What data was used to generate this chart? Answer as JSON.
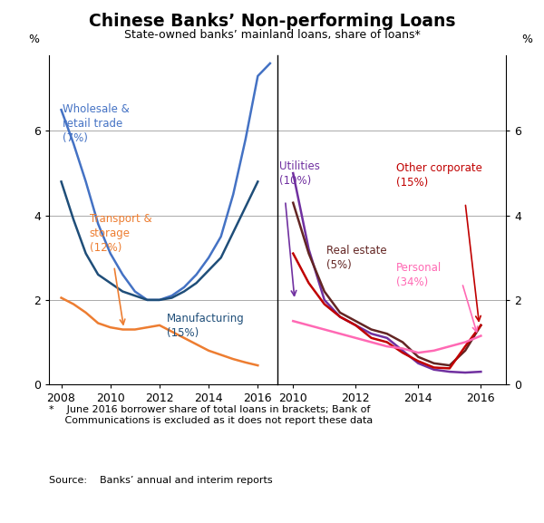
{
  "title": "Chinese Banks’ Non-performing Loans",
  "subtitle": "State-owned banks’ mainland loans, share of loans*",
  "footnote": "*    June 2016 borrower share of total loans in brackets; Bank of\n     Communications is excluded as it does not report these data",
  "source": "Source:    Banks’ annual and interim reports",
  "ylim": [
    0,
    7.8
  ],
  "yticks": [
    0,
    2,
    4,
    6
  ],
  "left_panel": {
    "xlim": [
      2007.5,
      2016.8
    ],
    "xticks": [
      2008,
      2010,
      2012,
      2014,
      2016
    ],
    "series": {
      "wholesale": {
        "color": "#4472C4",
        "x": [
          2008,
          2008.5,
          2009,
          2009.5,
          2010,
          2010.5,
          2011,
          2011.5,
          2012,
          2012.5,
          2013,
          2013.5,
          2014,
          2014.5,
          2015,
          2015.5,
          2016,
          2016.5
        ],
        "y": [
          6.5,
          5.7,
          4.8,
          3.8,
          3.1,
          2.6,
          2.2,
          2.0,
          2.0,
          2.1,
          2.3,
          2.6,
          3.0,
          3.5,
          4.5,
          5.8,
          7.3,
          7.6
        ]
      },
      "manufacturing": {
        "color": "#1F4E79",
        "x": [
          2008,
          2008.5,
          2009,
          2009.5,
          2010,
          2010.5,
          2011,
          2011.5,
          2012,
          2012.5,
          2013,
          2013.5,
          2014,
          2014.5,
          2015,
          2015.5,
          2016
        ],
        "y": [
          4.8,
          3.9,
          3.1,
          2.6,
          2.4,
          2.2,
          2.1,
          2.0,
          2.0,
          2.05,
          2.2,
          2.4,
          2.7,
          3.0,
          3.6,
          4.2,
          4.8
        ]
      },
      "transport": {
        "color": "#ED7D31",
        "x": [
          2008,
          2008.5,
          2009,
          2009.5,
          2010,
          2010.5,
          2011,
          2011.5,
          2012,
          2012.5,
          2013,
          2013.5,
          2014,
          2014.5,
          2015,
          2015.5,
          2016
        ],
        "y": [
          2.05,
          1.9,
          1.7,
          1.45,
          1.35,
          1.3,
          1.3,
          1.35,
          1.4,
          1.25,
          1.1,
          0.95,
          0.8,
          0.7,
          0.6,
          0.52,
          0.45
        ]
      }
    }
  },
  "right_panel": {
    "xlim": [
      2009.5,
      2016.8
    ],
    "xticks": [
      2010,
      2012,
      2014,
      2016
    ],
    "series": {
      "utilities": {
        "color": "#7030A0",
        "x": [
          2010,
          2010.5,
          2011,
          2011.5,
          2012,
          2012.5,
          2013,
          2013.5,
          2014,
          2014.5,
          2015,
          2015.5,
          2016
        ],
        "y": [
          5.0,
          3.2,
          2.0,
          1.6,
          1.4,
          1.2,
          1.1,
          0.8,
          0.5,
          0.35,
          0.3,
          0.28,
          0.3
        ]
      },
      "real_estate": {
        "color": "#632523",
        "x": [
          2010,
          2010.5,
          2011,
          2011.5,
          2012,
          2012.5,
          2013,
          2013.5,
          2014,
          2014.5,
          2015,
          2015.5,
          2016
        ],
        "y": [
          4.3,
          3.1,
          2.2,
          1.7,
          1.5,
          1.3,
          1.2,
          1.0,
          0.65,
          0.5,
          0.45,
          0.8,
          1.4
        ]
      },
      "other_corporate": {
        "color": "#C00000",
        "x": [
          2010,
          2010.5,
          2011,
          2011.5,
          2012,
          2012.5,
          2013,
          2013.5,
          2014,
          2014.5,
          2015,
          2015.5,
          2016
        ],
        "y": [
          3.1,
          2.4,
          1.9,
          1.6,
          1.4,
          1.1,
          1.0,
          0.75,
          0.55,
          0.4,
          0.38,
          0.9,
          1.4
        ]
      },
      "personal": {
        "color": "#FF69B4",
        "x": [
          2010,
          2010.5,
          2011,
          2011.5,
          2012,
          2012.5,
          2013,
          2013.5,
          2014,
          2014.5,
          2015,
          2015.5,
          2016
        ],
        "y": [
          1.5,
          1.4,
          1.3,
          1.2,
          1.1,
          1.0,
          0.9,
          0.85,
          0.75,
          0.8,
          0.9,
          1.0,
          1.15
        ]
      }
    }
  },
  "background_color": "#FFFFFF",
  "grid_color": "#AAAAAA"
}
